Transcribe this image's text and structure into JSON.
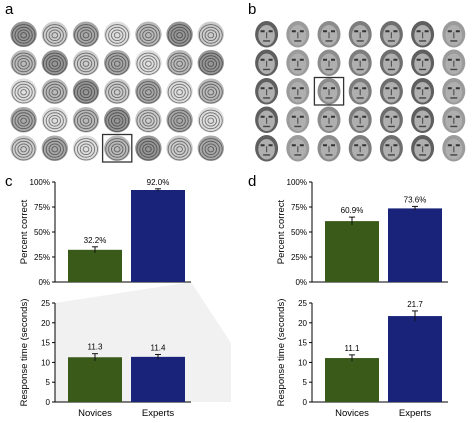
{
  "panels": {
    "a": "a",
    "b": "b",
    "c": "c",
    "d": "d"
  },
  "images": {
    "fingerprint_grid": {
      "rows": 5,
      "cols": 7,
      "highlight": {
        "row": 5,
        "col": 4
      }
    },
    "face_grid": {
      "rows": 5,
      "cols": 7,
      "highlight": {
        "row": 3,
        "col": 3
      }
    }
  },
  "colors": {
    "novices": "#3a5a1a",
    "experts": "#1a237a",
    "axis": "#000000",
    "inset_bg": "#f1f1f1",
    "highlight": "#333333"
  },
  "chart_data": [
    {
      "id": "c-top",
      "type": "bar",
      "categories": [
        "Novices",
        "Experts"
      ],
      "values": [
        32.2,
        92.0
      ],
      "errors": [
        3.0,
        1.2
      ],
      "value_labels": [
        "32.2%",
        "92.0%"
      ],
      "ylabel": "Percent correct",
      "ylim": [
        0,
        100
      ],
      "yticks": [
        "0%",
        "25%",
        "50%",
        "75%",
        "100%"
      ],
      "ytick_values": [
        0,
        25,
        50,
        75,
        100
      ],
      "show_categories": false
    },
    {
      "id": "c-bottom",
      "type": "bar",
      "categories": [
        "Novices",
        "Experts"
      ],
      "values": [
        11.3,
        11.4
      ],
      "errors": [
        0.9,
        0.6
      ],
      "value_labels": [
        "11.3",
        "11.4"
      ],
      "ylabel": "Response time (seconds)",
      "ylim": [
        0,
        25
      ],
      "yticks": [
        "0",
        "5",
        "10",
        "15",
        "20",
        "25"
      ],
      "ytick_values": [
        0,
        5,
        10,
        15,
        20,
        25
      ],
      "show_categories": true
    },
    {
      "id": "d-top",
      "type": "bar",
      "categories": [
        "Novices",
        "Experts"
      ],
      "values": [
        60.9,
        73.6
      ],
      "errors": [
        4.0,
        2.0
      ],
      "value_labels": [
        "60.9%",
        "73.6%"
      ],
      "ylabel": "Percent correct",
      "ylim": [
        0,
        100
      ],
      "yticks": [
        "0%",
        "25%",
        "50%",
        "75%",
        "100%"
      ],
      "ytick_values": [
        0,
        25,
        50,
        75,
        100
      ],
      "show_categories": false
    },
    {
      "id": "d-bottom",
      "type": "bar",
      "categories": [
        "Novices",
        "Experts"
      ],
      "values": [
        11.1,
        21.7
      ],
      "errors": [
        0.8,
        1.3
      ],
      "value_labels": [
        "11.1",
        "21.7"
      ],
      "ylabel": "Response time (seconds)",
      "ylim": [
        0,
        25
      ],
      "yticks": [
        "0",
        "5",
        "10",
        "15",
        "20",
        "25"
      ],
      "ytick_values": [
        0,
        5,
        10,
        15,
        20,
        25
      ],
      "show_categories": true
    }
  ]
}
